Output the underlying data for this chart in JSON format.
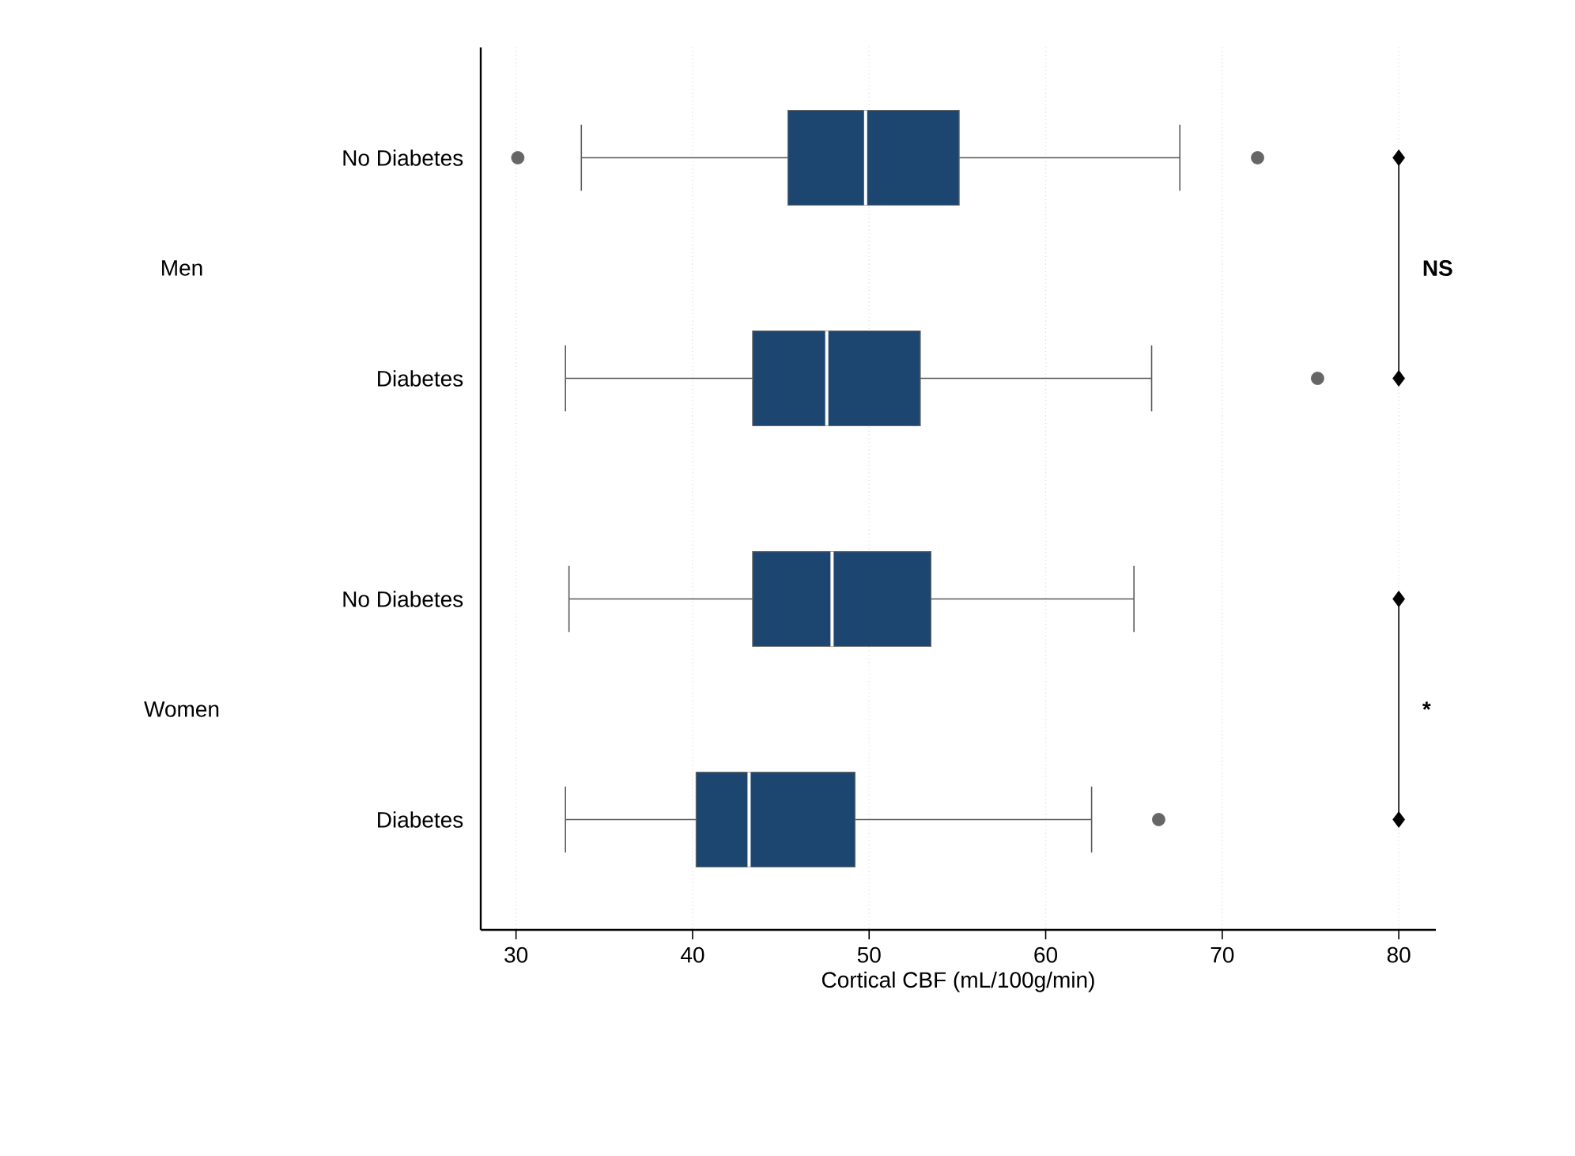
{
  "chart_data": {
    "type": "box",
    "orientation": "horizontal",
    "color": "#1c4670",
    "categories": [
      "No Diabetes",
      "Diabetes",
      "No Diabetes",
      "Diabetes"
    ],
    "boxes": [
      {
        "low": 33.7,
        "q1": 45.4,
        "median": 49.8,
        "q3": 55.1,
        "high": 67.6,
        "outliers": [
          30.1,
          72.0
        ]
      },
      {
        "low": 32.8,
        "q1": 43.4,
        "median": 47.6,
        "q3": 52.9,
        "high": 66.0,
        "outliers": [
          75.4
        ]
      },
      {
        "low": 33.0,
        "q1": 43.4,
        "median": 47.9,
        "q3": 53.5,
        "high": 65.0
      },
      {
        "low": 32.8,
        "q1": 40.2,
        "median": 43.2,
        "q3": 49.2,
        "high": 62.6,
        "outliers": [
          66.4
        ]
      }
    ],
    "xlabel": "Cortical CBF (mL/100g/min)",
    "xlim": [
      28,
      82.1
    ],
    "xticks": [
      30,
      40,
      50,
      60,
      70,
      80
    ],
    "grid": "x",
    "annotations": [
      "Men",
      "Women",
      "NS",
      "*"
    ]
  }
}
